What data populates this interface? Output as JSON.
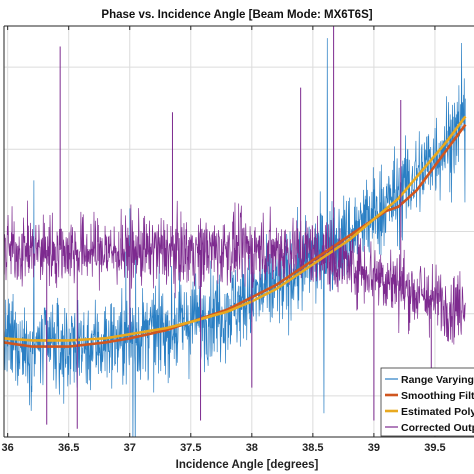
{
  "chart_data": {
    "type": "line",
    "title": "Phase vs. Incidence Angle [Beam Mode: MX6T6S]",
    "xlabel": "Incidence Angle [degrees]",
    "ylabel": "",
    "xlim": [
      35.97,
      39.82
    ],
    "ylim": [
      0,
      1
    ],
    "x_ticks": [
      36,
      36.5,
      37,
      37.5,
      38,
      38.5,
      39,
      39.5
    ],
    "x_tick_labels": [
      "36",
      "36.5",
      "37",
      "37.5",
      "38",
      "38.5",
      "39",
      "39.5"
    ],
    "grid": true,
    "legend_position": "bottom-right",
    "colors": {
      "range_varying": "#2a7fc4",
      "smoothing": "#d0561f",
      "estimated": "#e9a91f",
      "corrected": "#7d2a8f",
      "grid": "#dcdcdc",
      "axes": "#262626"
    },
    "series": [
      {
        "name": "Range Varying I",
        "style": "noisy",
        "x": [
          35.97,
          36.2,
          36.5,
          36.8,
          37.0,
          37.3,
          37.5,
          37.8,
          38.0,
          38.2,
          38.5,
          38.8,
          39.0,
          39.2,
          39.4,
          39.6,
          39.75
        ],
        "values": [
          0.23,
          0.22,
          0.22,
          0.23,
          0.24,
          0.26,
          0.28,
          0.31,
          0.34,
          0.37,
          0.43,
          0.49,
          0.54,
          0.59,
          0.65,
          0.72,
          0.77
        ]
      },
      {
        "name": "Smoothing Filte",
        "style": "line",
        "x": [
          35.97,
          36.2,
          36.5,
          36.8,
          37.0,
          37.3,
          37.5,
          37.8,
          38.0,
          38.2,
          38.5,
          38.8,
          39.0,
          39.1,
          39.2,
          39.35,
          39.5,
          39.65,
          39.75
        ],
        "values": [
          0.23,
          0.22,
          0.22,
          0.23,
          0.24,
          0.26,
          0.28,
          0.31,
          0.34,
          0.37,
          0.43,
          0.49,
          0.53,
          0.55,
          0.56,
          0.6,
          0.66,
          0.72,
          0.76
        ]
      },
      {
        "name": "Estimated Polyn",
        "style": "line",
        "x": [
          35.97,
          36.2,
          36.5,
          36.8,
          37.0,
          37.3,
          37.5,
          37.8,
          38.0,
          38.2,
          38.5,
          38.8,
          39.0,
          39.2,
          39.4,
          39.6,
          39.75
        ],
        "values": [
          0.24,
          0.235,
          0.235,
          0.24,
          0.25,
          0.265,
          0.28,
          0.305,
          0.33,
          0.36,
          0.42,
          0.48,
          0.53,
          0.58,
          0.65,
          0.72,
          0.78
        ]
      },
      {
        "name": "Corrected Outpu",
        "style": "noisy",
        "x": [
          35.97,
          36.5,
          37.0,
          37.5,
          38.0,
          38.5,
          39.0,
          39.3,
          39.6,
          39.75
        ],
        "values": [
          0.455,
          0.455,
          0.45,
          0.455,
          0.455,
          0.455,
          0.4,
          0.355,
          0.32,
          0.32
        ]
      }
    ]
  }
}
